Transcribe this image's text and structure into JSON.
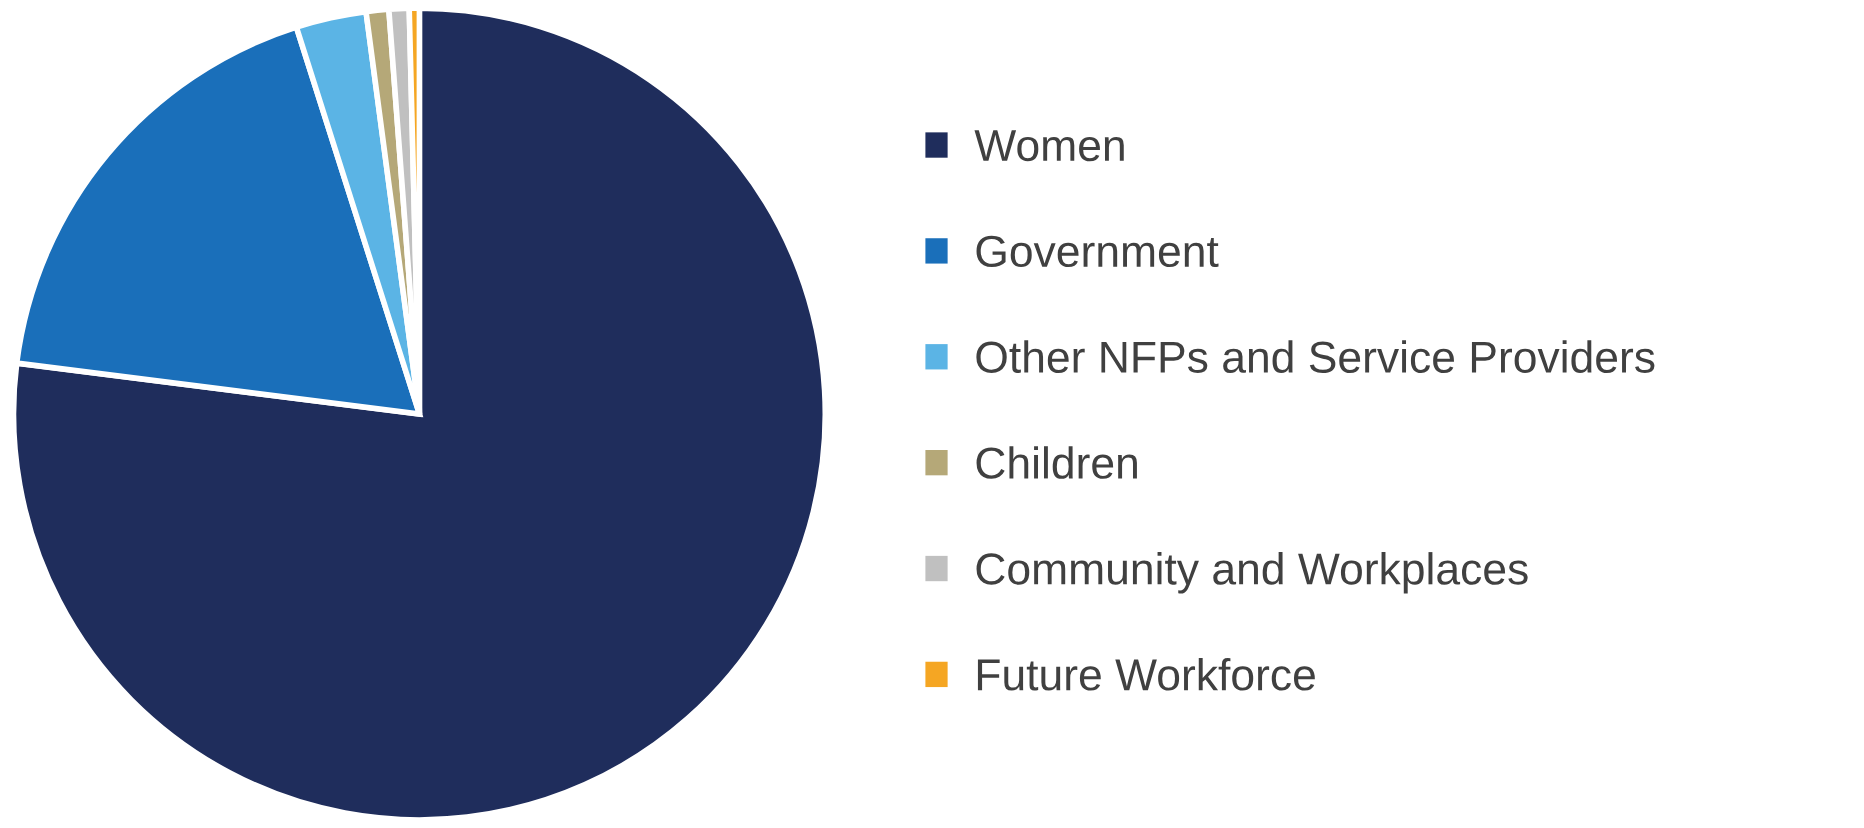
{
  "chart_data": {
    "type": "pie",
    "categories": [
      "Women",
      "Government",
      "Other NFPs and Service Providers",
      "Children",
      "Community and Workplaces",
      "Future Workforce"
    ],
    "values": [
      77,
      18.1,
      2.8,
      0.9,
      0.8,
      0.4
    ],
    "colors": [
      "#1f2d5c",
      "#1a6fba",
      "#5bb4e5",
      "#b5a878",
      "#c0c0c0",
      "#f5a623"
    ],
    "legend": "right"
  }
}
